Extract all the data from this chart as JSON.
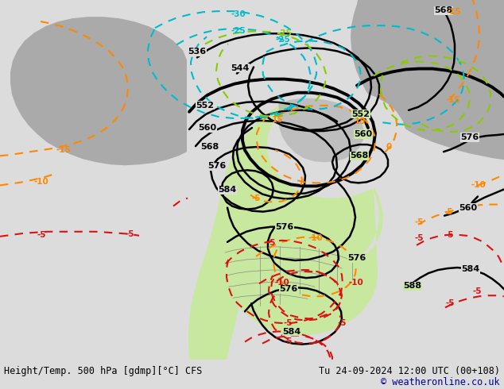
{
  "title_left": "Height/Temp. 500 hPa [gdmp][°C] CFS",
  "title_right": "Tu 24-09-2024 12:00 UTC (00+108)",
  "copyright": "© weatheronline.co.uk",
  "bg_color": "#dcdcdc",
  "land_green_color": "#c8e8a0",
  "land_gray_color": "#aaaaaa",
  "black": "#000000",
  "orange": "#ff8800",
  "red": "#dd1111",
  "cyan": "#00bbcc",
  "green_line": "#88cc00",
  "bottom_bar_color": "#cccccc",
  "font_size_bottom": 8.5,
  "fig_width": 6.34,
  "fig_height": 4.9,
  "dpi": 100
}
